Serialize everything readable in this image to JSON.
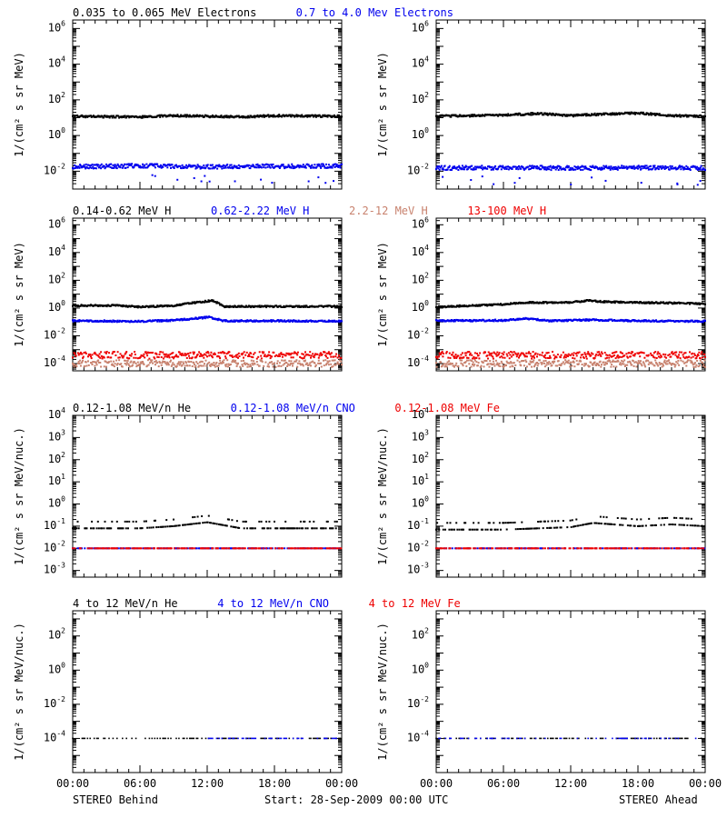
{
  "colors": {
    "black": "#000000",
    "blue": "#0000ee",
    "tan": "#c8826e",
    "red": "#ee0000",
    "axis": "#000000",
    "background": "#ffffff"
  },
  "footer": {
    "left": "STEREO Behind",
    "center": "Start: 28-Sep-2009 00:00 UTC",
    "right": "STEREO Ahead"
  },
  "chart_data": [
    {
      "row": 1,
      "type": "scatter",
      "y_scale": "log",
      "ylim": [
        0.001,
        3000000
      ],
      "x_ticks": [
        "00:00",
        "06:00",
        "12:00",
        "18:00",
        "00:00"
      ],
      "y_ticks": [
        {
          "e": -2
        },
        {
          "e": 0
        },
        {
          "e": 2
        },
        {
          "e": 4
        },
        {
          "e": 6
        }
      ],
      "ylabel": "1/(cm² s sr MeV)",
      "legend": [
        {
          "text": "0.035 to 0.065 MeV Electrons",
          "color": "black"
        },
        {
          "text": "0.7 to 4.0 Mev Electrons",
          "color": "blue"
        }
      ],
      "series": [
        {
          "name": "0.035 to 0.065 MeV Electrons",
          "color": "black",
          "behind": [
            [
              0,
              12
            ],
            [
              6,
              11
            ],
            [
              9,
              13
            ],
            [
              12,
              12
            ],
            [
              15,
              11
            ],
            [
              18,
              13
            ],
            [
              24,
              12
            ]
          ],
          "ahead": [
            [
              0,
              12
            ],
            [
              6,
              14
            ],
            [
              9,
              17
            ],
            [
              12,
              13
            ],
            [
              15,
              16
            ],
            [
              18,
              18
            ],
            [
              21,
              13
            ],
            [
              24,
              12
            ]
          ]
        },
        {
          "name": "0.7 to 4.0 Mev Electrons",
          "color": "blue",
          "behind": [
            [
              0,
              0.018
            ],
            [
              6,
              0.02
            ],
            [
              12,
              0.018
            ],
            [
              18,
              0.019
            ],
            [
              24,
              0.02
            ]
          ],
          "ahead": [
            [
              0,
              0.015
            ],
            [
              6,
              0.016
            ],
            [
              12,
              0.015
            ],
            [
              18,
              0.016
            ],
            [
              24,
              0.015
            ]
          ]
        }
      ]
    },
    {
      "row": 2,
      "type": "scatter",
      "y_scale": "log",
      "ylim": [
        3e-05,
        3000000
      ],
      "x_ticks": [
        "00:00",
        "06:00",
        "12:00",
        "18:00",
        "00:00"
      ],
      "y_ticks": [
        {
          "e": -4
        },
        {
          "e": -2
        },
        {
          "e": 0
        },
        {
          "e": 2
        },
        {
          "e": 4
        },
        {
          "e": 6
        }
      ],
      "ylabel": "1/(cm² s sr MeV)",
      "legend": [
        {
          "text": "0.14-0.62 MeV H",
          "color": "black"
        },
        {
          "text": "0.62-2.22 MeV H",
          "color": "blue"
        },
        {
          "text": "2.2-12 MeV H",
          "color": "tan"
        },
        {
          "text": "13-100 MeV H",
          "color": "red"
        }
      ],
      "series": [
        {
          "name": "0.14-0.62 MeV H",
          "color": "black",
          "behind": [
            [
              0,
              1.5
            ],
            [
              4,
              1.5
            ],
            [
              6,
              1.2
            ],
            [
              9,
              1.5
            ],
            [
              11,
              2.5
            ],
            [
              12.5,
              3.5
            ],
            [
              13.5,
              1.3
            ],
            [
              18,
              1.3
            ],
            [
              24,
              1.3
            ]
          ],
          "ahead": [
            [
              0,
              1.2
            ],
            [
              3,
              1.5
            ],
            [
              6,
              1.8
            ],
            [
              8,
              2.5
            ],
            [
              12,
              2.5
            ],
            [
              13.5,
              3.5
            ],
            [
              15,
              2.8
            ],
            [
              18,
              2.5
            ],
            [
              21,
              2.3
            ],
            [
              24,
              2.0
            ]
          ]
        },
        {
          "name": "0.62-2.22 MeV H",
          "color": "blue",
          "behind": [
            [
              0,
              0.12
            ],
            [
              6,
              0.11
            ],
            [
              9,
              0.13
            ],
            [
              11,
              0.18
            ],
            [
              12.2,
              0.22
            ],
            [
              13.5,
              0.12
            ],
            [
              18,
              0.12
            ],
            [
              24,
              0.11
            ]
          ],
          "ahead": [
            [
              0,
              0.12
            ],
            [
              6,
              0.13
            ],
            [
              8,
              0.18
            ],
            [
              10,
              0.12
            ],
            [
              14,
              0.14
            ],
            [
              18,
              0.12
            ],
            [
              24,
              0.11
            ]
          ]
        },
        {
          "name": "2.2-12 MeV H",
          "color": "tan",
          "behind": [
            [
              0,
              0.0001
            ],
            [
              24,
              0.0001
            ]
          ],
          "ahead": [
            [
              0,
              0.0001
            ],
            [
              24,
              0.0001
            ]
          ]
        },
        {
          "name": "13-100 MeV H",
          "color": "red",
          "behind": [
            [
              0,
              0.0004
            ],
            [
              24,
              0.0004
            ]
          ],
          "ahead": [
            [
              0,
              0.0004
            ],
            [
              24,
              0.0004
            ]
          ]
        }
      ]
    },
    {
      "row": 3,
      "type": "scatter",
      "y_scale": "log",
      "ylim": [
        0.0005,
        10000
      ],
      "x_ticks": [
        "00:00",
        "06:00",
        "12:00",
        "18:00",
        "00:00"
      ],
      "y_ticks": [
        {
          "e": -3
        },
        {
          "e": -2
        },
        {
          "e": -1
        },
        {
          "e": 0
        },
        {
          "e": 1
        },
        {
          "e": 2
        },
        {
          "e": 3
        },
        {
          "e": 4
        }
      ],
      "ylabel": "1/(cm² s sr MeV/nuc.)",
      "legend": [
        {
          "text": "0.12-1.08 MeV/n He",
          "color": "black"
        },
        {
          "text": "0.12-1.08 MeV/n CNO",
          "color": "blue"
        },
        {
          "text": "0.12-1.08 MeV Fe",
          "color": "red"
        }
      ],
      "series": [
        {
          "name": "0.12-1.08 MeV/n He",
          "color": "black",
          "behind": [
            [
              0,
              0.08
            ],
            [
              6,
              0.08
            ],
            [
              9,
              0.1
            ],
            [
              12,
              0.15
            ],
            [
              15,
              0.08
            ],
            [
              24,
              0.08
            ]
          ],
          "ahead": [
            [
              0,
              0.07
            ],
            [
              6,
              0.07
            ],
            [
              12,
              0.09
            ],
            [
              14,
              0.14
            ],
            [
              18,
              0.1
            ],
            [
              21,
              0.12
            ],
            [
              24,
              0.1
            ]
          ]
        },
        {
          "name": "0.12-1.08 MeV/n CNO",
          "color": "blue",
          "behind": [
            [
              0,
              0.01
            ],
            [
              24,
              0.01
            ]
          ],
          "ahead": [
            [
              0,
              0.01
            ],
            [
              24,
              0.01
            ]
          ]
        },
        {
          "name": "0.12-1.08 MeV Fe",
          "color": "red",
          "behind": [
            [
              0,
              0.01
            ],
            [
              24,
              0.01
            ]
          ],
          "ahead": [
            [
              0,
              0.01
            ],
            [
              24,
              0.01
            ]
          ]
        }
      ]
    },
    {
      "row": 4,
      "type": "scatter",
      "y_scale": "log",
      "ylim": [
        1e-06,
        3000
      ],
      "x_ticks": [
        "00:00",
        "06:00",
        "12:00",
        "18:00",
        "00:00"
      ],
      "y_ticks": [
        {
          "e": -4
        },
        {
          "e": -2
        },
        {
          "e": 0
        },
        {
          "e": 2
        }
      ],
      "ylabel": "1/(cm² s sr MeV/nuc.)",
      "legend": [
        {
          "text": "4 to 12 MeV/n He",
          "color": "black"
        },
        {
          "text": "4 to 12 MeV/n CNO",
          "color": "blue"
        },
        {
          "text": "4 to 12 MeV Fe",
          "color": "red"
        }
      ],
      "series": [
        {
          "name": "4 to 12 MeV/n He",
          "color": "black",
          "behind": [
            [
              0,
              0.0001
            ],
            [
              24,
              0.0001
            ]
          ],
          "ahead": [
            [
              0,
              0.0001
            ],
            [
              24,
              0.0001
            ]
          ]
        },
        {
          "name": "4 to 12 MeV/n CNO",
          "color": "blue",
          "behind": [
            [
              12,
              0.0001
            ],
            [
              24,
              0.0001
            ]
          ],
          "ahead": [
            [
              0,
              0.0001
            ],
            [
              24,
              0.0001
            ]
          ]
        },
        {
          "name": "4 to 12 MeV Fe",
          "color": "red",
          "behind": [],
          "ahead": []
        }
      ]
    }
  ]
}
